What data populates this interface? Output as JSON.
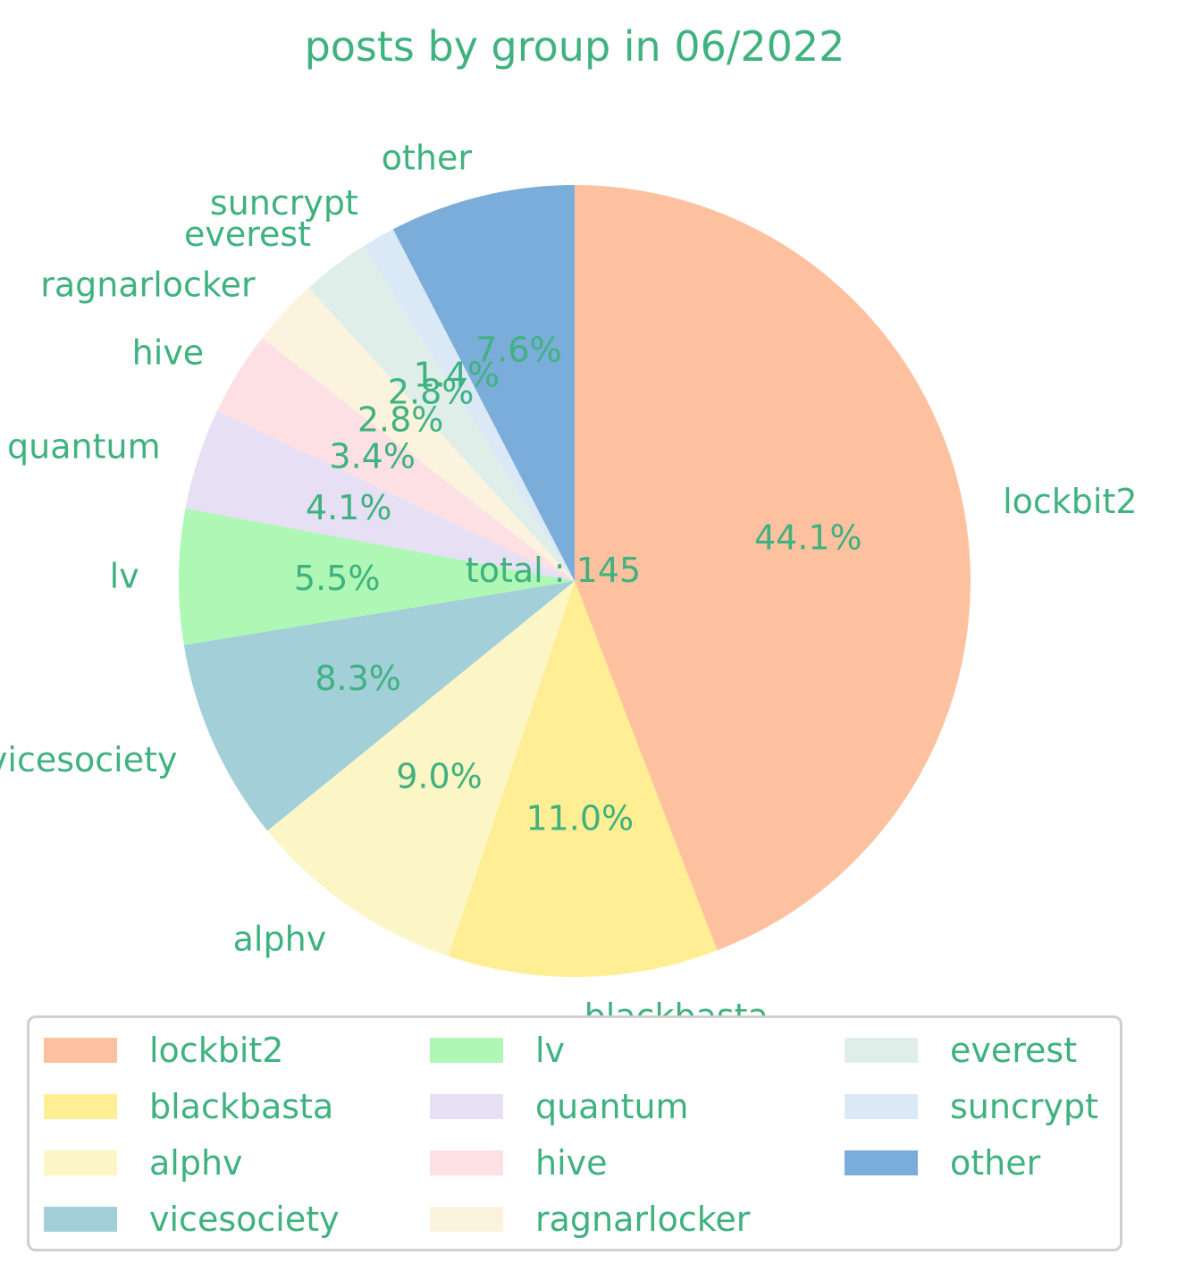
{
  "chart_data": {
    "type": "pie",
    "title": "posts by group in 06/2022",
    "center_label": "total : 145",
    "text_color": "#3fb27f",
    "start_angle_deg": 90,
    "direction": "clockwise",
    "legend_placement": "bottom",
    "legend_columns": 3,
    "slices": [
      {
        "label": "lockbit2",
        "value": 64,
        "pct_label": "44.1%",
        "color": "#fec1a0"
      },
      {
        "label": "blackbasta",
        "value": 16,
        "pct_label": "11.0%",
        "color": "#ffee94"
      },
      {
        "label": "alphv",
        "value": 13,
        "pct_label": "9.0%",
        "color": "#fcf6c6"
      },
      {
        "label": "vicesociety",
        "value": 12,
        "pct_label": "8.3%",
        "color": "#a2cfd8"
      },
      {
        "label": "lv",
        "value": 8,
        "pct_label": "5.5%",
        "color": "#aff7b4"
      },
      {
        "label": "quantum",
        "value": 6,
        "pct_label": "4.1%",
        "color": "#e7dff4"
      },
      {
        "label": "hive",
        "value": 5,
        "pct_label": "3.4%",
        "color": "#fde0e4"
      },
      {
        "label": "ragnarlocker",
        "value": 4,
        "pct_label": "2.8%",
        "color": "#fcf3de"
      },
      {
        "label": "everest",
        "value": 4,
        "pct_label": "2.8%",
        "color": "#dfeee9"
      },
      {
        "label": "suncrypt",
        "value": 2,
        "pct_label": "1.4%",
        "color": "#dbe9f6"
      },
      {
        "label": "other",
        "value": 11,
        "pct_label": "7.6%",
        "color": "#7badda"
      }
    ]
  }
}
